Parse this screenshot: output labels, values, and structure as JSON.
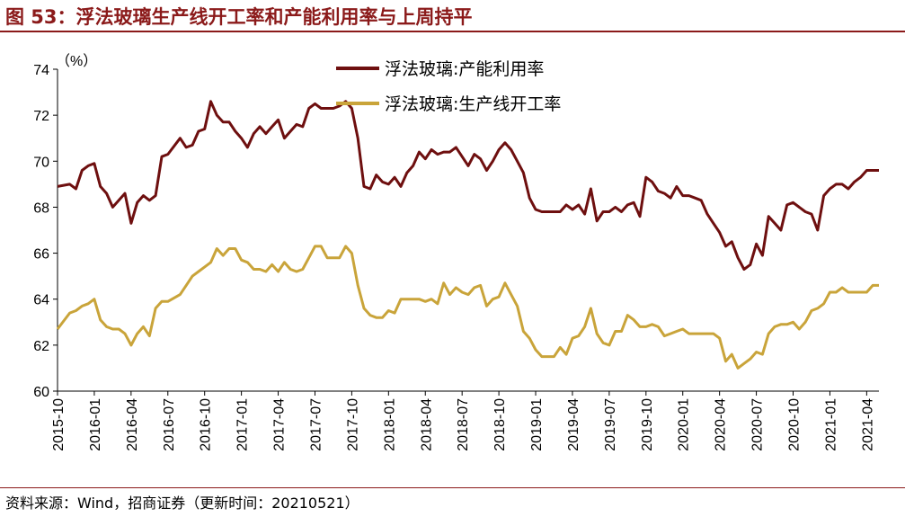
{
  "title": "图 53：浮法玻璃生产线开工率和产能利用率与上周持平",
  "source": "资料来源：Wind，招商证券（更新时间：20210521）",
  "colors": {
    "accent": "#8B1A1A",
    "series1": "#6E0F0F",
    "series2": "#C9A43A"
  },
  "chart_data": {
    "type": "line",
    "ylabel": "（%）",
    "ylim": [
      60,
      74
    ],
    "yticks": [
      60,
      62,
      64,
      66,
      68,
      70,
      72,
      74
    ],
    "xlim": [
      "2015-10",
      "2021-05"
    ],
    "xticks": [
      "2015-10",
      "2016-01",
      "2016-04",
      "2016-07",
      "2016-10",
      "2017-01",
      "2017-04",
      "2017-07",
      "2017-10",
      "2018-01",
      "2018-04",
      "2018-07",
      "2018-10",
      "2019-01",
      "2019-04",
      "2019-07",
      "2019-10",
      "2020-01",
      "2020-04",
      "2020-07",
      "2020-10",
      "2021-01",
      "2021-04"
    ],
    "grid": false,
    "legend": "top-center",
    "series": [
      {
        "name": "浮法玻璃:产能利用率",
        "color": "#6E0F0F",
        "points": [
          [
            "2015-10",
            68.9
          ],
          [
            "2015-11",
            69.0
          ],
          [
            "2015-11",
            68.8
          ],
          [
            "2015-12",
            69.6
          ],
          [
            "2015-12",
            69.8
          ],
          [
            "2016-01",
            69.9
          ],
          [
            "2016-01",
            68.9
          ],
          [
            "2016-02",
            68.6
          ],
          [
            "2016-02",
            68.0
          ],
          [
            "2016-03",
            68.3
          ],
          [
            "2016-03",
            68.6
          ],
          [
            "2016-04",
            67.3
          ],
          [
            "2016-04",
            68.2
          ],
          [
            "2016-05",
            68.5
          ],
          [
            "2016-05",
            68.3
          ],
          [
            "2016-06",
            68.5
          ],
          [
            "2016-06",
            70.2
          ],
          [
            "2016-07",
            70.3
          ],
          [
            "2016-08",
            71.0
          ],
          [
            "2016-08",
            70.6
          ],
          [
            "2016-09",
            70.7
          ],
          [
            "2016-09",
            71.3
          ],
          [
            "2016-10",
            71.4
          ],
          [
            "2016-10",
            72.6
          ],
          [
            "2016-11",
            72.0
          ],
          [
            "2016-11",
            71.7
          ],
          [
            "2016-12",
            71.7
          ],
          [
            "2016-12",
            71.3
          ],
          [
            "2017-01",
            71.0
          ],
          [
            "2017-01",
            70.6
          ],
          [
            "2017-02",
            71.2
          ],
          [
            "2017-02",
            71.5
          ],
          [
            "2017-03",
            71.2
          ],
          [
            "2017-03",
            71.5
          ],
          [
            "2017-04",
            71.8
          ],
          [
            "2017-04",
            71.0
          ],
          [
            "2017-05",
            71.3
          ],
          [
            "2017-05",
            71.6
          ],
          [
            "2017-06",
            71.5
          ],
          [
            "2017-06",
            72.3
          ],
          [
            "2017-07",
            72.5
          ],
          [
            "2017-07",
            72.3
          ],
          [
            "2017-08",
            72.3
          ],
          [
            "2017-08",
            72.3
          ],
          [
            "2017-09",
            72.4
          ],
          [
            "2017-09",
            72.6
          ],
          [
            "2017-10",
            72.3
          ],
          [
            "2017-10",
            71.0
          ],
          [
            "2017-11",
            68.9
          ],
          [
            "2017-11",
            68.8
          ],
          [
            "2017-12",
            69.4
          ],
          [
            "2017-12",
            69.1
          ],
          [
            "2018-01",
            69.0
          ],
          [
            "2018-01",
            69.3
          ],
          [
            "2018-02",
            68.9
          ],
          [
            "2018-02",
            69.5
          ],
          [
            "2018-03",
            69.8
          ],
          [
            "2018-03",
            70.4
          ],
          [
            "2018-04",
            70.1
          ],
          [
            "2018-04",
            70.5
          ],
          [
            "2018-05",
            70.3
          ],
          [
            "2018-05",
            70.4
          ],
          [
            "2018-06",
            70.4
          ],
          [
            "2018-06",
            70.6
          ],
          [
            "2018-07",
            70.2
          ],
          [
            "2018-07",
            69.8
          ],
          [
            "2018-08",
            70.3
          ],
          [
            "2018-08",
            70.1
          ],
          [
            "2018-09",
            69.6
          ],
          [
            "2018-09",
            70.0
          ],
          [
            "2018-10",
            70.5
          ],
          [
            "2018-10",
            70.8
          ],
          [
            "2018-11",
            70.5
          ],
          [
            "2018-11",
            70.0
          ],
          [
            "2018-12",
            69.5
          ],
          [
            "2018-12",
            68.4
          ],
          [
            "2019-01",
            67.9
          ],
          [
            "2019-01",
            67.8
          ],
          [
            "2019-02",
            67.8
          ],
          [
            "2019-02",
            67.8
          ],
          [
            "2019-03",
            67.8
          ],
          [
            "2019-03",
            68.1
          ],
          [
            "2019-04",
            67.9
          ],
          [
            "2019-04",
            68.1
          ],
          [
            "2019-05",
            67.7
          ],
          [
            "2019-05",
            68.8
          ],
          [
            "2019-06",
            67.4
          ],
          [
            "2019-06",
            67.8
          ],
          [
            "2019-07",
            67.8
          ],
          [
            "2019-07",
            68.0
          ],
          [
            "2019-08",
            67.8
          ],
          [
            "2019-08",
            68.1
          ],
          [
            "2019-09",
            68.2
          ],
          [
            "2019-09",
            67.6
          ],
          [
            "2019-10",
            69.3
          ],
          [
            "2019-10",
            69.1
          ],
          [
            "2019-11",
            68.7
          ],
          [
            "2019-11",
            68.6
          ],
          [
            "2019-12",
            68.4
          ],
          [
            "2019-12",
            68.9
          ],
          [
            "2020-01",
            68.5
          ],
          [
            "2020-01",
            68.5
          ],
          [
            "2020-02",
            68.4
          ],
          [
            "2020-02",
            68.3
          ],
          [
            "2020-03",
            67.7
          ],
          [
            "2020-03",
            67.3
          ],
          [
            "2020-04",
            66.9
          ],
          [
            "2020-04",
            66.3
          ],
          [
            "2020-05",
            66.5
          ],
          [
            "2020-05",
            65.8
          ],
          [
            "2020-06",
            65.3
          ],
          [
            "2020-06",
            65.5
          ],
          [
            "2020-07",
            66.4
          ],
          [
            "2020-07",
            65.9
          ],
          [
            "2020-08",
            67.6
          ],
          [
            "2020-08",
            67.3
          ],
          [
            "2020-09",
            67.0
          ],
          [
            "2020-09",
            68.1
          ],
          [
            "2020-10",
            68.2
          ],
          [
            "2020-10",
            68.0
          ],
          [
            "2020-11",
            67.8
          ],
          [
            "2020-11",
            67.7
          ],
          [
            "2020-12",
            67.0
          ],
          [
            "2020-12",
            68.5
          ],
          [
            "2021-01",
            68.8
          ],
          [
            "2021-01",
            69.0
          ],
          [
            "2021-02",
            69.0
          ],
          [
            "2021-02",
            68.8
          ],
          [
            "2021-03",
            69.1
          ],
          [
            "2021-03",
            69.3
          ],
          [
            "2021-04",
            69.6
          ],
          [
            "2021-04",
            69.6
          ],
          [
            "2021-05",
            69.6
          ]
        ]
      },
      {
        "name": "浮法玻璃:生产线开工率",
        "color": "#C9A43A",
        "points": [
          [
            "2015-10",
            62.7
          ],
          [
            "2015-11",
            63.4
          ],
          [
            "2015-11",
            63.5
          ],
          [
            "2015-12",
            63.7
          ],
          [
            "2015-12",
            63.8
          ],
          [
            "2016-01",
            64.0
          ],
          [
            "2016-01",
            63.1
          ],
          [
            "2016-02",
            62.8
          ],
          [
            "2016-02",
            62.7
          ],
          [
            "2016-03",
            62.7
          ],
          [
            "2016-03",
            62.5
          ],
          [
            "2016-04",
            62.0
          ],
          [
            "2016-04",
            62.5
          ],
          [
            "2016-05",
            62.8
          ],
          [
            "2016-05",
            62.4
          ],
          [
            "2016-06",
            63.6
          ],
          [
            "2016-06",
            63.9
          ],
          [
            "2016-07",
            63.9
          ],
          [
            "2016-08",
            64.2
          ],
          [
            "2016-08",
            64.6
          ],
          [
            "2016-09",
            65.0
          ],
          [
            "2016-09",
            65.2
          ],
          [
            "2016-10",
            65.4
          ],
          [
            "2016-10",
            65.6
          ],
          [
            "2016-11",
            66.2
          ],
          [
            "2016-11",
            65.9
          ],
          [
            "2016-12",
            66.2
          ],
          [
            "2016-12",
            66.2
          ],
          [
            "2017-01",
            65.7
          ],
          [
            "2017-01",
            65.6
          ],
          [
            "2017-02",
            65.3
          ],
          [
            "2017-02",
            65.3
          ],
          [
            "2017-03",
            65.2
          ],
          [
            "2017-03",
            65.5
          ],
          [
            "2017-04",
            65.2
          ],
          [
            "2017-04",
            65.6
          ],
          [
            "2017-05",
            65.3
          ],
          [
            "2017-05",
            65.2
          ],
          [
            "2017-06",
            65.3
          ],
          [
            "2017-06",
            65.8
          ],
          [
            "2017-07",
            66.3
          ],
          [
            "2017-07",
            66.3
          ],
          [
            "2017-08",
            65.8
          ],
          [
            "2017-08",
            65.8
          ],
          [
            "2017-09",
            65.8
          ],
          [
            "2017-09",
            66.3
          ],
          [
            "2017-10",
            66.0
          ],
          [
            "2017-10",
            64.6
          ],
          [
            "2017-11",
            63.6
          ],
          [
            "2017-11",
            63.3
          ],
          [
            "2017-12",
            63.2
          ],
          [
            "2017-12",
            63.2
          ],
          [
            "2018-01",
            63.5
          ],
          [
            "2018-01",
            63.4
          ],
          [
            "2018-02",
            64.0
          ],
          [
            "2018-02",
            64.0
          ],
          [
            "2018-03",
            64.0
          ],
          [
            "2018-03",
            64.0
          ],
          [
            "2018-04",
            63.9
          ],
          [
            "2018-04",
            64.0
          ],
          [
            "2018-05",
            63.8
          ],
          [
            "2018-05",
            64.7
          ],
          [
            "2018-06",
            64.2
          ],
          [
            "2018-06",
            64.5
          ],
          [
            "2018-07",
            64.3
          ],
          [
            "2018-07",
            64.2
          ],
          [
            "2018-08",
            64.5
          ],
          [
            "2018-08",
            64.6
          ],
          [
            "2018-09",
            63.7
          ],
          [
            "2018-09",
            64.0
          ],
          [
            "2018-10",
            64.1
          ],
          [
            "2018-10",
            64.7
          ],
          [
            "2018-11",
            64.2
          ],
          [
            "2018-11",
            63.7
          ],
          [
            "2018-12",
            62.6
          ],
          [
            "2018-12",
            62.3
          ],
          [
            "2019-01",
            61.8
          ],
          [
            "2019-01",
            61.5
          ],
          [
            "2019-02",
            61.5
          ],
          [
            "2019-02",
            61.5
          ],
          [
            "2019-03",
            61.9
          ],
          [
            "2019-03",
            61.6
          ],
          [
            "2019-04",
            62.3
          ],
          [
            "2019-04",
            62.4
          ],
          [
            "2019-05",
            62.8
          ],
          [
            "2019-05",
            63.6
          ],
          [
            "2019-06",
            62.5
          ],
          [
            "2019-06",
            62.1
          ],
          [
            "2019-07",
            62.0
          ],
          [
            "2019-07",
            62.6
          ],
          [
            "2019-08",
            62.6
          ],
          [
            "2019-08",
            63.3
          ],
          [
            "2019-09",
            63.1
          ],
          [
            "2019-09",
            62.8
          ],
          [
            "2019-10",
            62.8
          ],
          [
            "2019-10",
            62.9
          ],
          [
            "2019-11",
            62.8
          ],
          [
            "2019-11",
            62.4
          ],
          [
            "2019-12",
            62.5
          ],
          [
            "2019-12",
            62.6
          ],
          [
            "2020-01",
            62.7
          ],
          [
            "2020-01",
            62.5
          ],
          [
            "2020-02",
            62.5
          ],
          [
            "2020-02",
            62.5
          ],
          [
            "2020-03",
            62.5
          ],
          [
            "2020-03",
            62.5
          ],
          [
            "2020-04",
            62.3
          ],
          [
            "2020-04",
            61.3
          ],
          [
            "2020-05",
            61.6
          ],
          [
            "2020-05",
            61.0
          ],
          [
            "2020-06",
            61.2
          ],
          [
            "2020-06",
            61.4
          ],
          [
            "2020-07",
            61.7
          ],
          [
            "2020-07",
            61.6
          ],
          [
            "2020-08",
            62.5
          ],
          [
            "2020-08",
            62.8
          ],
          [
            "2020-09",
            62.9
          ],
          [
            "2020-09",
            62.9
          ],
          [
            "2020-10",
            63.0
          ],
          [
            "2020-10",
            62.7
          ],
          [
            "2020-11",
            63.0
          ],
          [
            "2020-11",
            63.5
          ],
          [
            "2020-12",
            63.6
          ],
          [
            "2020-12",
            63.8
          ],
          [
            "2021-01",
            64.3
          ],
          [
            "2021-01",
            64.3
          ],
          [
            "2021-02",
            64.5
          ],
          [
            "2021-02",
            64.3
          ],
          [
            "2021-03",
            64.3
          ],
          [
            "2021-03",
            64.3
          ],
          [
            "2021-04",
            64.3
          ],
          [
            "2021-04",
            64.6
          ],
          [
            "2021-05",
            64.6
          ]
        ]
      }
    ]
  }
}
